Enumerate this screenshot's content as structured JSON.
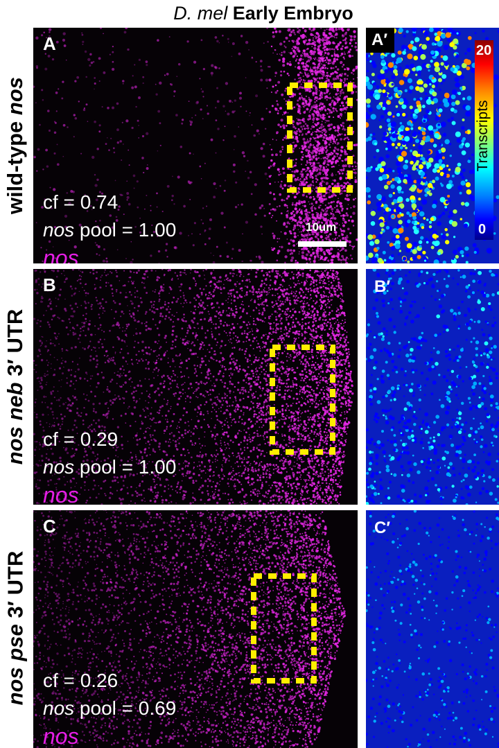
{
  "figure": {
    "title_italic": "D. mel",
    "title_rest": " Early Embryo"
  },
  "colorbar": {
    "title": "Transcripts",
    "max": "20",
    "min": "0"
  },
  "scale_bar": {
    "label": "10um"
  },
  "rows": [
    {
      "label_prefix": "wild-type ",
      "label_italic": "nos",
      "label_suffix": "",
      "panel": "A",
      "heatmap_panel": "A′",
      "cf": "cf = 0.74",
      "pool_italic": "nos",
      "pool_text": " pool =  1.00",
      "probe": "nos"
    },
    {
      "label_prefix": "",
      "label_italic": "nos neb",
      "label_suffix": " 3′ UTR",
      "panel": "B",
      "heatmap_panel": "B′",
      "cf": "cf = 0.29",
      "pool_italic": "nos",
      "pool_text": " pool =  1.00",
      "probe": "nos"
    },
    {
      "label_prefix": "",
      "label_italic": "nos pse",
      "label_suffix": " 3′ UTR",
      "panel": "C",
      "heatmap_panel": "C′",
      "cf": "cf = 0.26",
      "pool_italic": "nos",
      "pool_text": " pool =  0.69",
      "probe": "nos"
    }
  ]
}
